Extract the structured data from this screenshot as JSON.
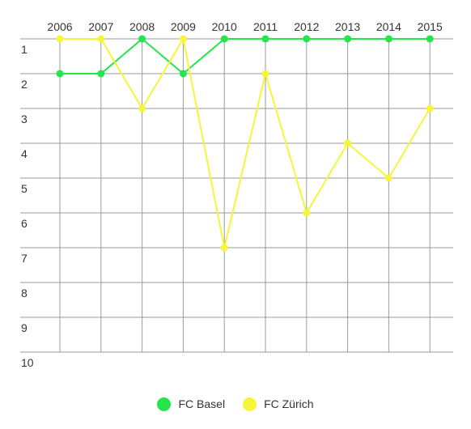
{
  "chart_data": {
    "type": "line",
    "title": "",
    "xlabel": "",
    "ylabel": "",
    "categories": [
      "2006",
      "2007",
      "2008",
      "2009",
      "2010",
      "2011",
      "2012",
      "2013",
      "2014",
      "2015"
    ],
    "y_ticks": [
      "1",
      "2",
      "3",
      "4",
      "5",
      "6",
      "7",
      "8",
      "9",
      "10"
    ],
    "ylim": [
      1,
      10
    ],
    "y_reversed": true,
    "grid": true,
    "legend_position": "bottom",
    "series": [
      {
        "name": "FC Basel",
        "color": "#22e64a",
        "values": [
          2,
          2,
          1,
          2,
          1,
          1,
          1,
          1,
          1,
          1
        ]
      },
      {
        "name": "FC Zürich",
        "color": "#f5f53a",
        "values": [
          1,
          1,
          3,
          1,
          7,
          2,
          6,
          4,
          5,
          3
        ]
      }
    ]
  }
}
